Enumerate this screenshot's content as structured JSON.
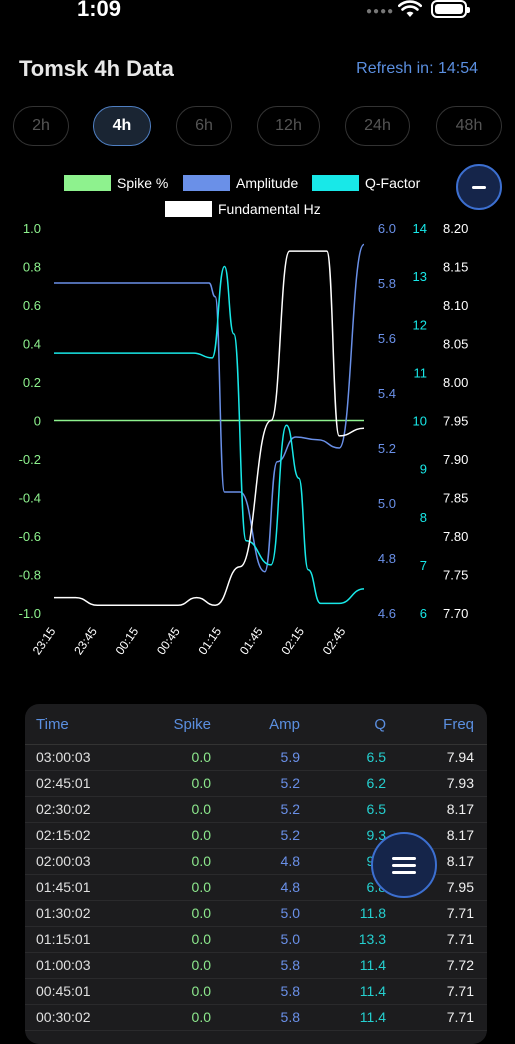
{
  "status": {
    "time": "1:09"
  },
  "header": {
    "title": "Tomsk 4h Data",
    "refresh": "Refresh in: 14:54"
  },
  "range_tabs": [
    "2h",
    "4h",
    "6h",
    "12h",
    "24h",
    "48h"
  ],
  "active_tab": "4h",
  "legend": [
    {
      "label": "Spike %",
      "color": "#8ef28e"
    },
    {
      "label": "Amplitude",
      "color": "#6a90e8"
    },
    {
      "label": "Q-Factor",
      "color": "#18e8e8"
    },
    {
      "label": "Fundamental Hz",
      "color": "#ffffff"
    }
  ],
  "chart_data": {
    "type": "line",
    "x_ticks": [
      "23:15",
      "23:45",
      "00:15",
      "00:45",
      "01:15",
      "01:45",
      "02:15",
      "02:45"
    ],
    "axes": {
      "spike": {
        "ticks": [
          "1.0",
          "0.8",
          "0.6",
          "0.4",
          "0.2",
          "0",
          "-0.2",
          "-0.4",
          "-0.6",
          "-0.8",
          "-1.0"
        ],
        "range": [
          -1.0,
          1.0
        ],
        "color": "#8ef28e"
      },
      "amplitude": {
        "ticks": [
          "6.0",
          "5.8",
          "5.6",
          "5.4",
          "5.2",
          "5.0",
          "4.8",
          "4.6"
        ],
        "range": [
          4.6,
          6.0
        ],
        "color": "#6a90e8"
      },
      "qfactor": {
        "ticks": [
          "14",
          "13",
          "12",
          "11",
          "10",
          "9",
          "8",
          "7",
          "6"
        ],
        "range": [
          6,
          14
        ],
        "color": "#18e8e8"
      },
      "frequency": {
        "ticks": [
          "8.20",
          "8.15",
          "8.10",
          "8.05",
          "8.00",
          "7.95",
          "7.90",
          "7.85",
          "7.80",
          "7.75",
          "7.70"
        ],
        "range": [
          7.7,
          8.2
        ],
        "color": "#ffffff"
      }
    },
    "series": [
      {
        "name": "Spike %",
        "axis": "spike",
        "x": [
          0,
          1
        ],
        "y": [
          0.0,
          0.0
        ]
      },
      {
        "name": "Amplitude",
        "axis": "amplitude",
        "x": [
          0,
          0.5,
          0.52,
          0.55,
          0.6,
          0.68,
          0.72,
          0.78,
          0.85,
          0.92,
          1.0
        ],
        "y": [
          5.8,
          5.8,
          5.75,
          5.04,
          5.04,
          4.75,
          5.15,
          5.24,
          5.23,
          5.2,
          5.94
        ]
      },
      {
        "name": "Q-Factor",
        "axis": "qfactor",
        "x": [
          0,
          0.45,
          0.51,
          0.55,
          0.58,
          0.62,
          0.7,
          0.75,
          0.79,
          0.82,
          0.86,
          0.92,
          1.0
        ],
        "y": [
          11.4,
          11.4,
          11.3,
          13.2,
          11.8,
          7.5,
          7.0,
          9.9,
          8.8,
          6.9,
          6.2,
          6.2,
          6.5
        ]
      },
      {
        "name": "Fundamental Hz",
        "axis": "frequency",
        "x": [
          0,
          0.07,
          0.14,
          0.4,
          0.46,
          0.52,
          0.6,
          0.7,
          0.76,
          0.83,
          0.88,
          0.92,
          1.0
        ],
        "y": [
          7.72,
          7.72,
          7.71,
          7.71,
          7.72,
          7.71,
          7.76,
          7.95,
          8.17,
          8.17,
          8.17,
          7.93,
          7.94
        ]
      }
    ]
  },
  "table": {
    "headers": {
      "time": "Time",
      "spike": "Spike",
      "amp": "Amp",
      "q": "Q",
      "freq": "Freq"
    },
    "rows": [
      {
        "time": "03:00:03",
        "spike": "0.0",
        "amp": "5.9",
        "q": "6.5",
        "freq": "7.94"
      },
      {
        "time": "02:45:01",
        "spike": "0.0",
        "amp": "5.2",
        "q": "6.2",
        "freq": "7.93"
      },
      {
        "time": "02:30:02",
        "spike": "0.0",
        "amp": "5.2",
        "q": "6.5",
        "freq": "8.17"
      },
      {
        "time": "02:15:02",
        "spike": "0.0",
        "amp": "5.2",
        "q": "9.3",
        "freq": "8.17"
      },
      {
        "time": "02:00:03",
        "spike": "0.0",
        "amp": "4.8",
        "q": "9.9",
        "freq": "8.17"
      },
      {
        "time": "01:45:01",
        "spike": "0.0",
        "amp": "4.8",
        "q": "6.8",
        "freq": "7.95"
      },
      {
        "time": "01:30:02",
        "spike": "0.0",
        "amp": "5.0",
        "q": "11.8",
        "freq": "7.71"
      },
      {
        "time": "01:15:01",
        "spike": "0.0",
        "amp": "5.0",
        "q": "13.3",
        "freq": "7.71"
      },
      {
        "time": "01:00:03",
        "spike": "0.0",
        "amp": "5.8",
        "q": "11.4",
        "freq": "7.72"
      },
      {
        "time": "00:45:01",
        "spike": "0.0",
        "amp": "5.8",
        "q": "11.4",
        "freq": "7.71"
      },
      {
        "time": "00:30:02",
        "spike": "0.0",
        "amp": "5.8",
        "q": "11.4",
        "freq": "7.71"
      }
    ]
  }
}
